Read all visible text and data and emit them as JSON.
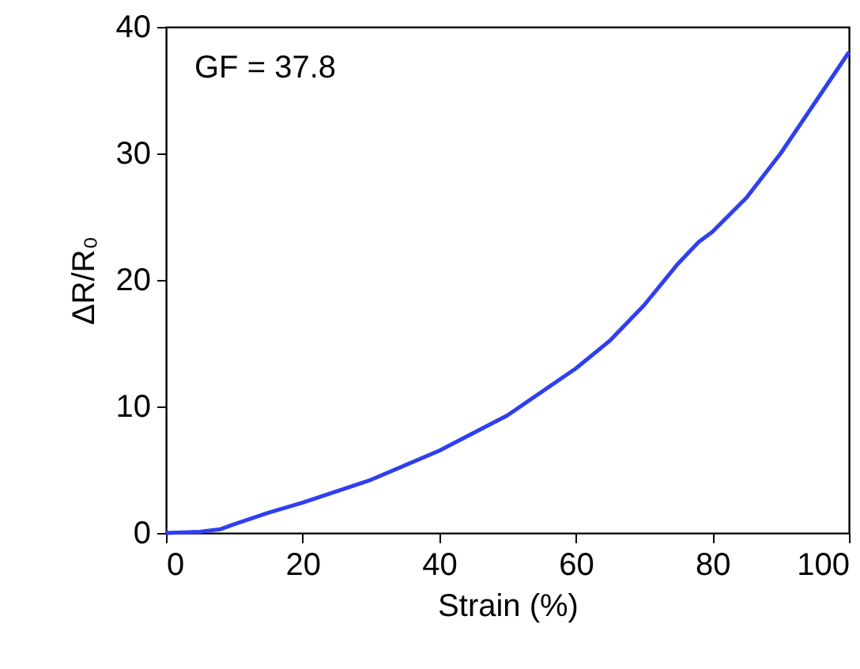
{
  "chart_data": {
    "type": "line",
    "xlabel": "Strain (%)",
    "ylabel": "ΔR/R₀",
    "annotations": [
      "GF = 37.8"
    ],
    "x": [
      0,
      5,
      8,
      10,
      15,
      20,
      30,
      40,
      50,
      60,
      65,
      70,
      75,
      78,
      80,
      85,
      90,
      95,
      100
    ],
    "series": [
      {
        "color": "#2f3ff0",
        "values": [
          0,
          0.1,
          0.3,
          0.7,
          1.6,
          2.4,
          4.2,
          6.5,
          9.3,
          13,
          15.2,
          18,
          21.3,
          23,
          23.8,
          26.5,
          30,
          34,
          38
        ]
      }
    ],
    "xlim": [
      0,
      100
    ],
    "xticks": [
      0,
      20,
      40,
      60,
      80,
      100
    ],
    "ylim": [
      0,
      40
    ],
    "yticks": [
      0,
      10,
      20,
      30,
      40
    ],
    "grid": false,
    "marker": "none",
    "line_style": "solid"
  }
}
